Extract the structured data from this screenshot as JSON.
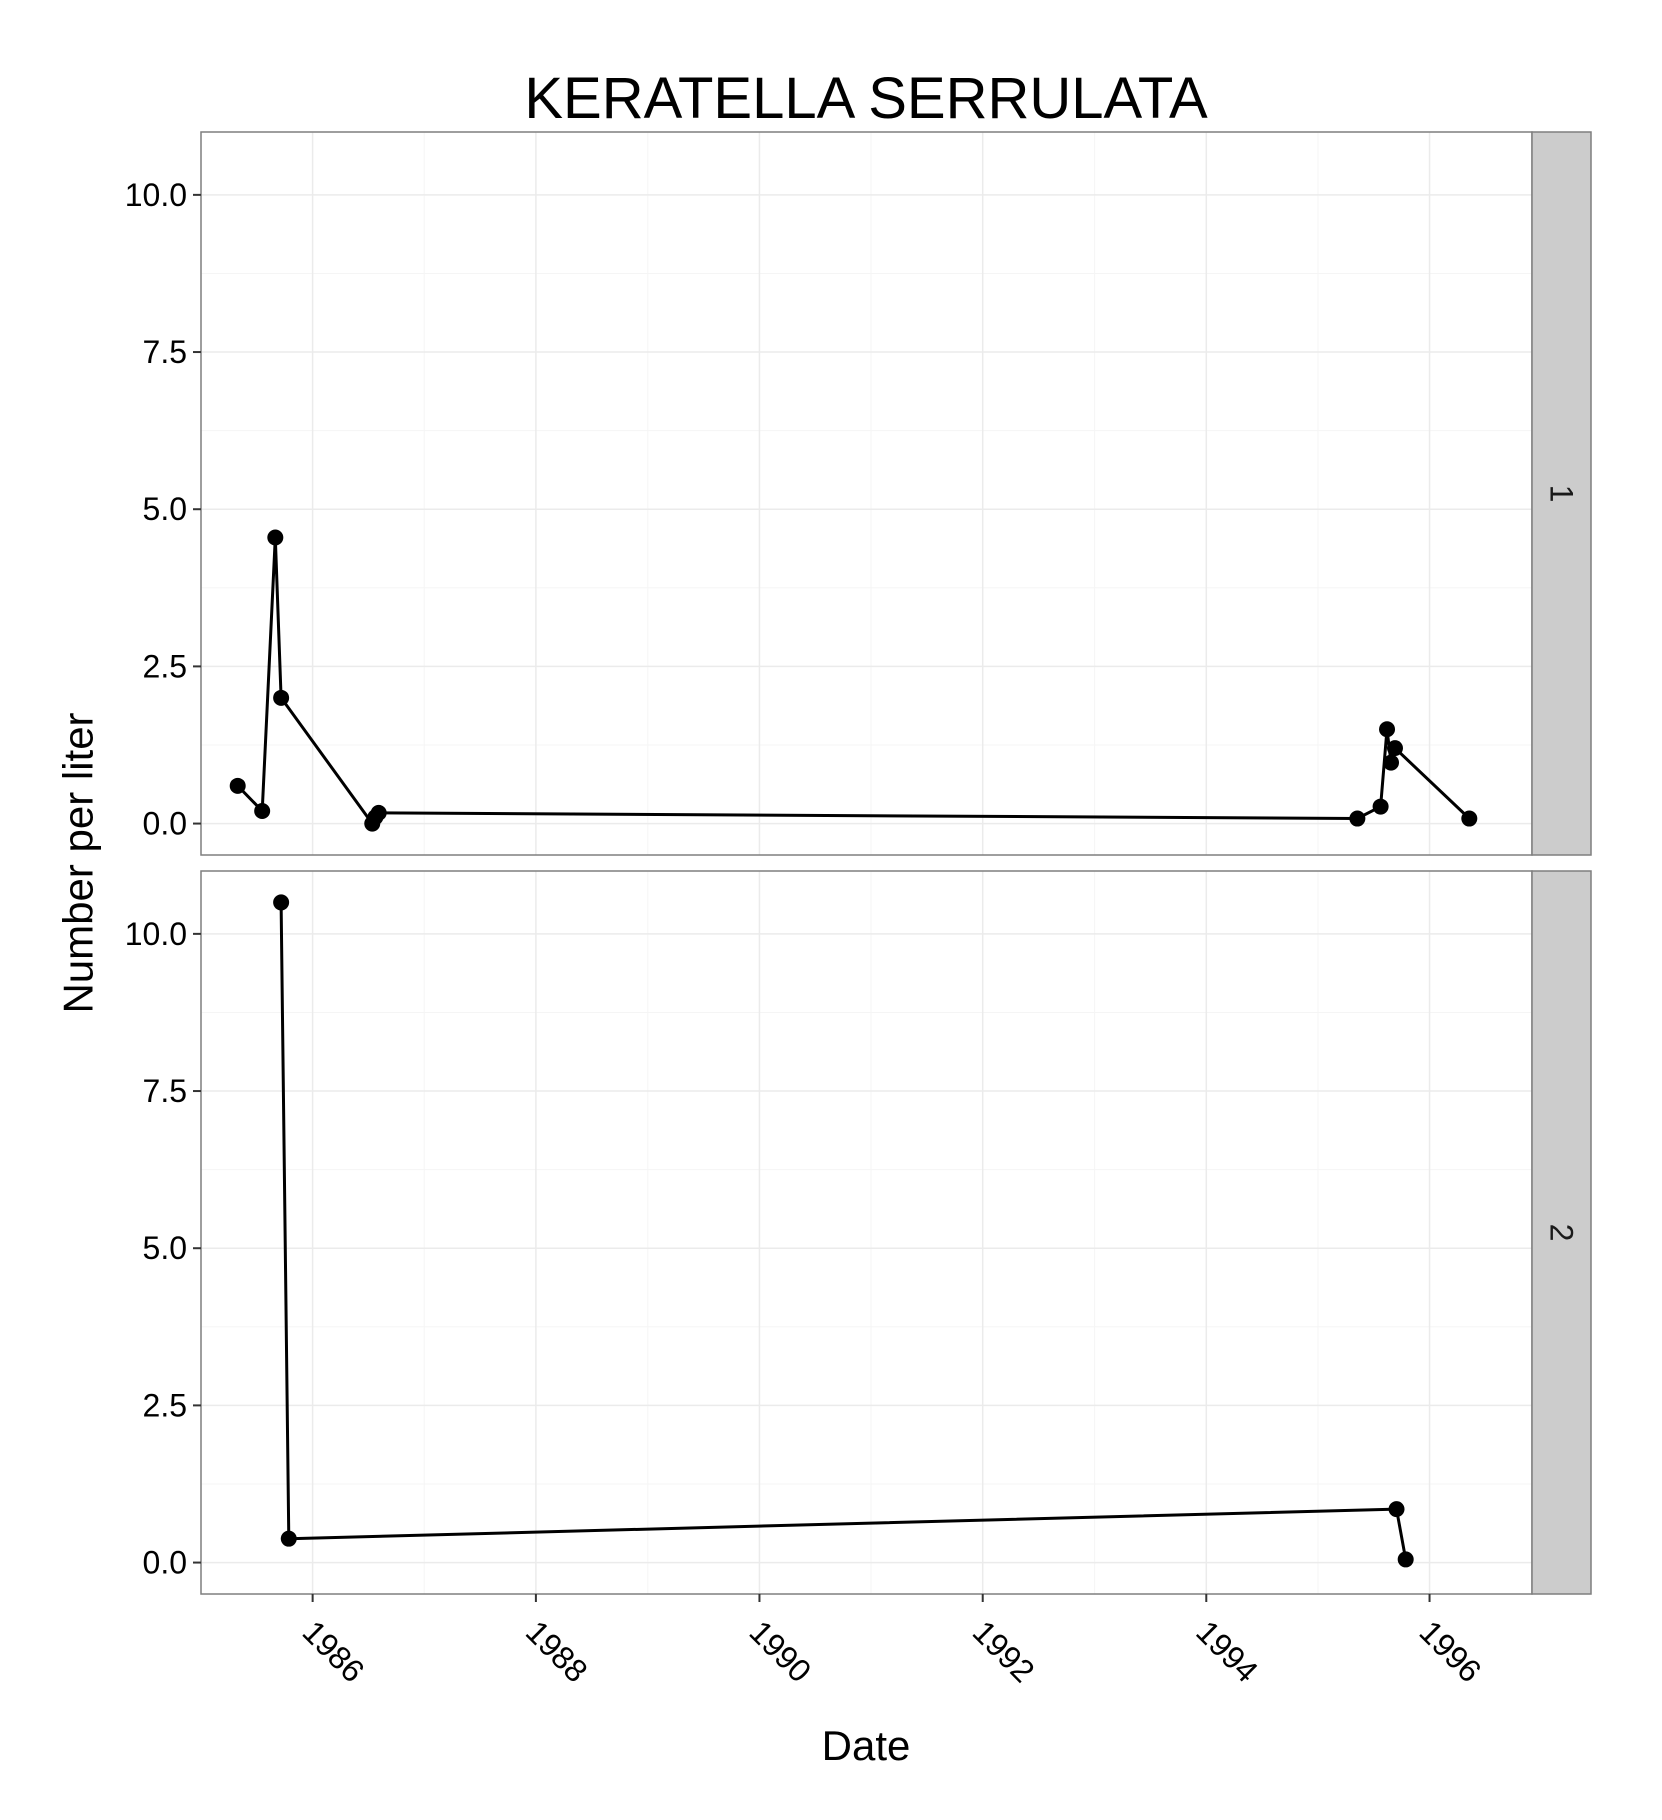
{
  "chart_data": {
    "type": "line",
    "title": "KERATELLA SERRULATA",
    "xlabel": "Date",
    "ylabel": "Number per liter",
    "x_axis_kind": "date",
    "xlim": [
      "1985-01-01",
      "1996-12-01"
    ],
    "ylim": [
      -0.5,
      11
    ],
    "x_ticks": [
      {
        "label": "1986",
        "date": "1986-01-01"
      },
      {
        "label": "1988",
        "date": "1988-01-01"
      },
      {
        "label": "1990",
        "date": "1990-01-01"
      },
      {
        "label": "1992",
        "date": "1992-01-01"
      },
      {
        "label": "1994",
        "date": "1994-01-01"
      },
      {
        "label": "1996",
        "date": "1996-01-01"
      }
    ],
    "y_ticks": [
      {
        "label": "0.0",
        "value": 0
      },
      {
        "label": "2.5",
        "value": 2.5
      },
      {
        "label": "5.0",
        "value": 5
      },
      {
        "label": "7.5",
        "value": 7.5
      },
      {
        "label": "10.0",
        "value": 10
      }
    ],
    "grid": true,
    "facet_orientation": "rows",
    "panels": [
      {
        "strip": "1",
        "points": [
          {
            "date": "1985-05-01",
            "y": 0.6
          },
          {
            "date": "1985-07-20",
            "y": 0.2
          },
          {
            "date": "1985-09-01",
            "y": 4.55
          },
          {
            "date": "1985-09-20",
            "y": 2.0
          },
          {
            "date": "1986-07-15",
            "y": 0.0
          },
          {
            "date": "1986-07-25",
            "y": 0.1
          },
          {
            "date": "1986-08-05",
            "y": 0.17
          },
          {
            "date": "1995-05-10",
            "y": 0.08
          },
          {
            "date": "1995-07-25",
            "y": 0.27
          },
          {
            "date": "1995-08-15",
            "y": 1.5
          },
          {
            "date": "1995-08-28",
            "y": 0.97
          },
          {
            "date": "1995-09-10",
            "y": 1.2
          },
          {
            "date": "1996-05-10",
            "y": 0.08
          }
        ]
      },
      {
        "strip": "2",
        "points": [
          {
            "date": "1985-09-20",
            "y": 10.5
          },
          {
            "date": "1985-10-15",
            "y": 0.38
          },
          {
            "date": "1995-09-15",
            "y": 0.85
          },
          {
            "date": "1995-10-15",
            "y": 0.05
          }
        ]
      }
    ]
  }
}
